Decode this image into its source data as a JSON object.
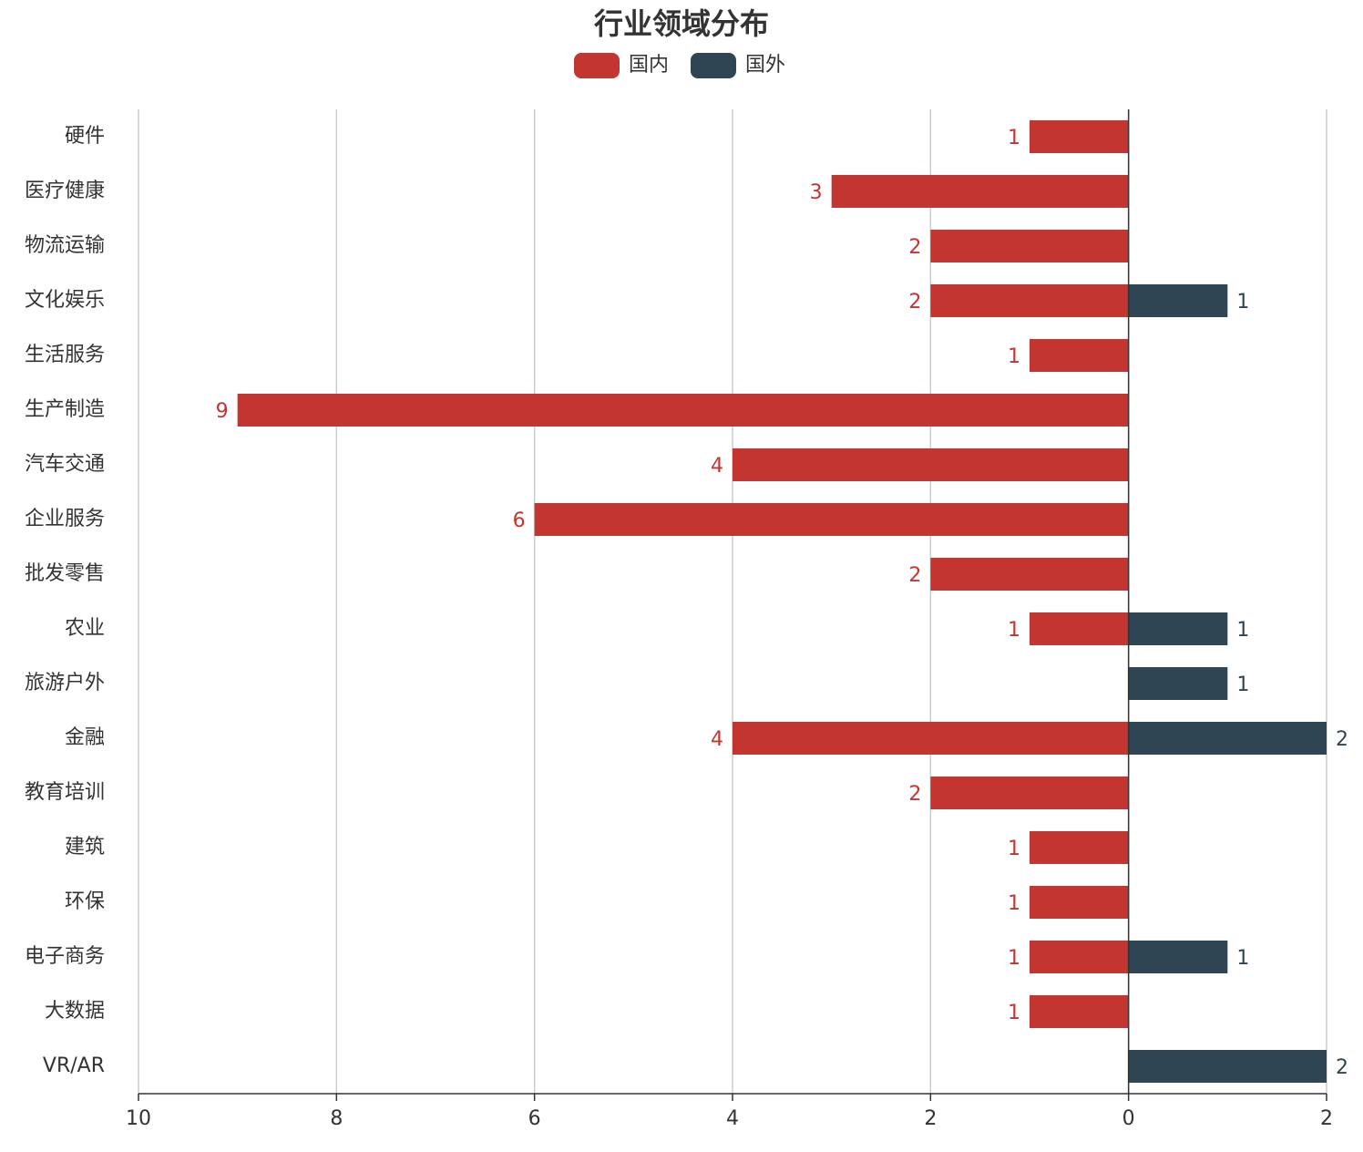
{
  "chart_data": {
    "type": "bar",
    "orientation": "horizontal",
    "title": "行业领域分布",
    "categories": [
      "硬件",
      "医疗健康",
      "物流运输",
      "文化娱乐",
      "生活服务",
      "生产制造",
      "汽车交通",
      "企业服务",
      "批发零售",
      "农业",
      "旅游户外",
      "金融",
      "教育培训",
      "建筑",
      "环保",
      "电子商务",
      "大数据",
      "VR/AR"
    ],
    "series": [
      {
        "name": "国内",
        "color": "#c23531",
        "values": [
          -1,
          -3,
          -2,
          -2,
          -1,
          -9,
          -4,
          -6,
          -2,
          -1,
          null,
          -4,
          -2,
          -1,
          -1,
          -1,
          -1,
          null
        ],
        "value_labels": [
          "1",
          "3",
          "2",
          "2",
          "1",
          "9",
          "4",
          "6",
          "2",
          "1",
          null,
          "4",
          "2",
          "1",
          "1",
          "1",
          "1",
          null
        ]
      },
      {
        "name": "国外",
        "color": "#2f4554",
        "values": [
          null,
          null,
          null,
          1,
          null,
          null,
          null,
          null,
          null,
          1,
          1,
          2,
          null,
          null,
          null,
          1,
          null,
          2
        ]
      }
    ],
    "xlim": [
      -10,
      2
    ],
    "xticks": [
      {
        "value": -10,
        "label": "10"
      },
      {
        "value": -8,
        "label": "8"
      },
      {
        "value": -6,
        "label": "6"
      },
      {
        "value": -4,
        "label": "4"
      },
      {
        "value": -2,
        "label": "2"
      },
      0,
      2
    ],
    "grid": true,
    "legend": "top"
  }
}
